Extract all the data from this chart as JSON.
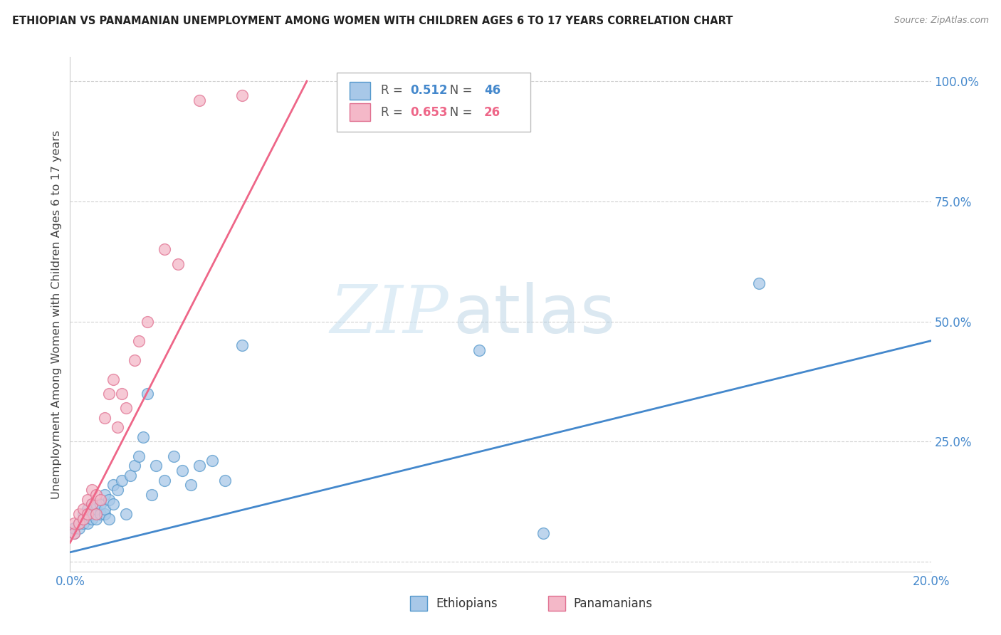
{
  "title": "ETHIOPIAN VS PANAMANIAN UNEMPLOYMENT AMONG WOMEN WITH CHILDREN AGES 6 TO 17 YEARS CORRELATION CHART",
  "source": "Source: ZipAtlas.com",
  "ylabel": "Unemployment Among Women with Children Ages 6 to 17 years",
  "xlim": [
    0.0,
    0.2
  ],
  "ylim": [
    -0.02,
    1.05
  ],
  "yticks": [
    0.0,
    0.25,
    0.5,
    0.75,
    1.0
  ],
  "ytick_labels": [
    "",
    "25.0%",
    "50.0%",
    "75.0%",
    "100.0%"
  ],
  "xticks": [
    0.0,
    0.05,
    0.1,
    0.15,
    0.2
  ],
  "xtick_labels": [
    "0.0%",
    "",
    "",
    "",
    "20.0%"
  ],
  "blue_fill": "#a8c8e8",
  "blue_edge": "#5599cc",
  "pink_fill": "#f4b8c8",
  "pink_edge": "#e07090",
  "blue_line": "#4488cc",
  "pink_line": "#ee6688",
  "R_blue": "0.512",
  "N_blue": "46",
  "R_pink": "0.653",
  "N_pink": "26",
  "watermark_zip": "ZIP",
  "watermark_atlas": "atlas",
  "legend_labels": [
    "Ethiopians",
    "Panamanians"
  ],
  "ethiopians_x": [
    0.001,
    0.001,
    0.002,
    0.002,
    0.003,
    0.003,
    0.003,
    0.004,
    0.004,
    0.004,
    0.005,
    0.005,
    0.005,
    0.006,
    0.006,
    0.006,
    0.007,
    0.007,
    0.008,
    0.008,
    0.008,
    0.009,
    0.009,
    0.01,
    0.01,
    0.011,
    0.012,
    0.013,
    0.014,
    0.015,
    0.016,
    0.017,
    0.018,
    0.019,
    0.02,
    0.022,
    0.024,
    0.026,
    0.028,
    0.03,
    0.033,
    0.036,
    0.04,
    0.095,
    0.11,
    0.16
  ],
  "ethiopians_y": [
    0.06,
    0.07,
    0.07,
    0.08,
    0.08,
    0.09,
    0.1,
    0.08,
    0.1,
    0.11,
    0.09,
    0.1,
    0.12,
    0.09,
    0.11,
    0.12,
    0.1,
    0.12,
    0.1,
    0.11,
    0.14,
    0.09,
    0.13,
    0.12,
    0.16,
    0.15,
    0.17,
    0.1,
    0.18,
    0.2,
    0.22,
    0.26,
    0.35,
    0.14,
    0.2,
    0.17,
    0.22,
    0.19,
    0.16,
    0.2,
    0.21,
    0.17,
    0.45,
    0.44,
    0.06,
    0.58
  ],
  "panamanians_x": [
    0.001,
    0.001,
    0.002,
    0.002,
    0.003,
    0.003,
    0.004,
    0.004,
    0.005,
    0.005,
    0.006,
    0.006,
    0.007,
    0.008,
    0.009,
    0.01,
    0.011,
    0.012,
    0.013,
    0.015,
    0.016,
    0.018,
    0.022,
    0.025,
    0.03,
    0.04
  ],
  "panamanians_y": [
    0.06,
    0.08,
    0.08,
    0.1,
    0.09,
    0.11,
    0.1,
    0.13,
    0.12,
    0.15,
    0.1,
    0.14,
    0.13,
    0.3,
    0.35,
    0.38,
    0.28,
    0.35,
    0.32,
    0.42,
    0.46,
    0.5,
    0.65,
    0.62,
    0.96,
    0.97
  ],
  "blue_line_x": [
    0.0,
    0.2
  ],
  "blue_line_y": [
    0.02,
    0.46
  ],
  "pink_line_x": [
    0.0,
    0.055
  ],
  "pink_line_y": [
    0.04,
    1.0
  ]
}
